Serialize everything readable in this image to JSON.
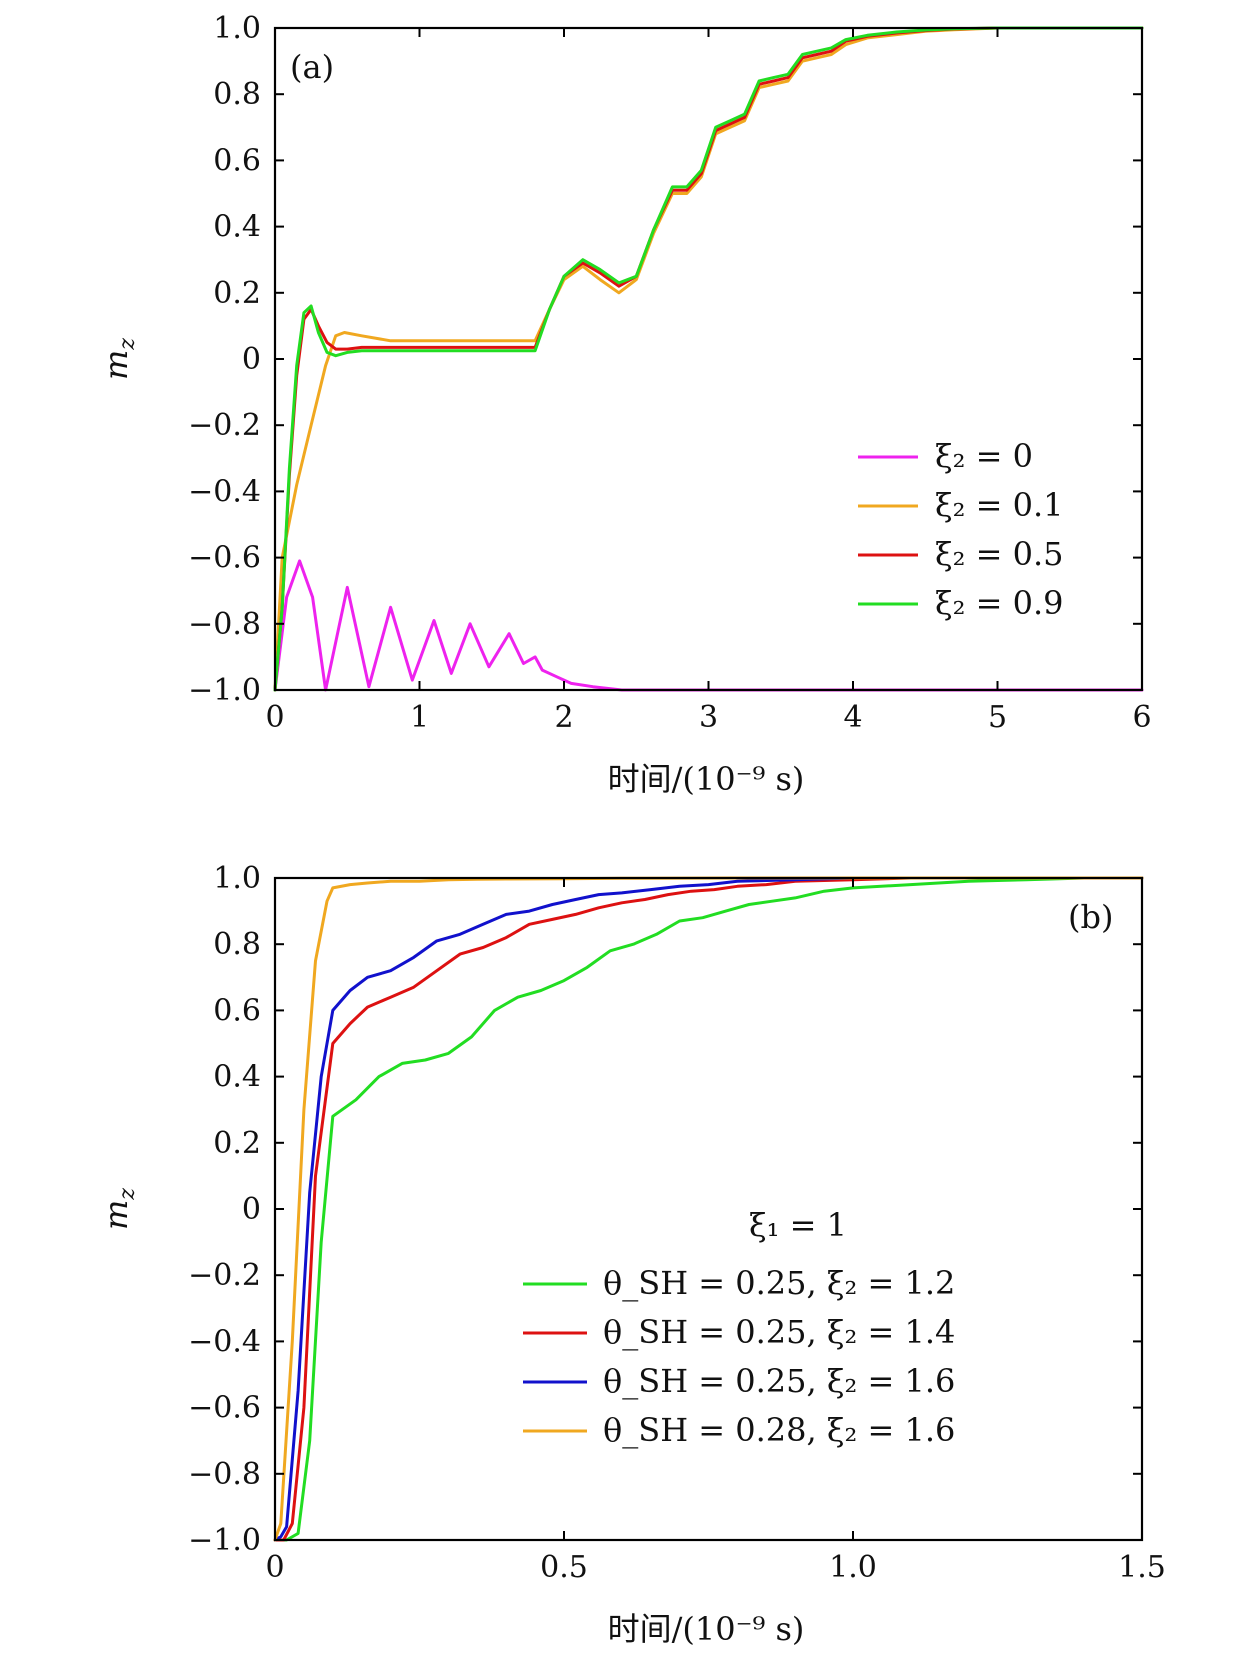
{
  "chart_data": [
    {
      "type": "line",
      "panel_label": "(a)",
      "xlabel": "时间/(10⁻⁹ s)",
      "ylabel": "m_z",
      "xlim": [
        0,
        6
      ],
      "ylim": [
        -1.0,
        1.0
      ],
      "x_ticks": [
        0,
        1,
        2,
        3,
        4,
        5,
        6
      ],
      "x_tick_labels": [
        "0",
        "1",
        "2",
        "3",
        "4",
        "5",
        "6"
      ],
      "y_ticks": [
        -1.0,
        -0.8,
        -0.6,
        -0.4,
        -0.2,
        0,
        0.2,
        0.4,
        0.6,
        0.8,
        1.0
      ],
      "y_tick_labels": [
        "−1.0",
        "−0.8",
        "−0.6",
        "−0.4",
        "−0.2",
        "0",
        "0.2",
        "0.4",
        "0.6",
        "0.8",
        "1.0"
      ],
      "grid": false,
      "legend_position": "right-center",
      "series": [
        {
          "name": "ξ₂ = 0",
          "color": "#ee22ee",
          "x": [
            0,
            0.08,
            0.17,
            0.26,
            0.35,
            0.5,
            0.65,
            0.8,
            0.95,
            1.1,
            1.22,
            1.35,
            1.48,
            1.62,
            1.72,
            1.8,
            1.85,
            1.95,
            2.05,
            2.2,
            2.4,
            2.6,
            3.0,
            4.0,
            5.0,
            6.0
          ],
          "y": [
            -1.0,
            -0.72,
            -0.61,
            -0.72,
            -1.0,
            -0.69,
            -0.99,
            -0.75,
            -0.97,
            -0.79,
            -0.95,
            -0.8,
            -0.93,
            -0.83,
            -0.92,
            -0.9,
            -0.94,
            -0.96,
            -0.98,
            -0.99,
            -1.0,
            -1.0,
            -1.0,
            -1.0,
            -1.0,
            -1.0
          ]
        },
        {
          "name": "ξ₂ = 0.1",
          "color": "#f0a820",
          "x": [
            0,
            0.05,
            0.15,
            0.25,
            0.35,
            0.42,
            0.48,
            0.6,
            0.8,
            1.0,
            1.4,
            1.8,
            1.9,
            2.0,
            2.13,
            2.25,
            2.38,
            2.5,
            2.62,
            2.75,
            2.85,
            2.95,
            3.05,
            3.15,
            3.25,
            3.35,
            3.45,
            3.55,
            3.65,
            3.75,
            3.85,
            3.95,
            4.1,
            4.3,
            4.5,
            4.7,
            5.0,
            6.0
          ],
          "y": [
            -1.0,
            -0.6,
            -0.38,
            -0.2,
            -0.02,
            0.07,
            0.08,
            0.07,
            0.055,
            0.055,
            0.055,
            0.055,
            0.15,
            0.24,
            0.28,
            0.24,
            0.2,
            0.24,
            0.38,
            0.5,
            0.5,
            0.55,
            0.68,
            0.7,
            0.72,
            0.82,
            0.83,
            0.84,
            0.9,
            0.91,
            0.92,
            0.95,
            0.97,
            0.98,
            0.99,
            0.995,
            1.0,
            1.0
          ]
        },
        {
          "name": "ξ₂ = 0.5",
          "color": "#dd1111",
          "x": [
            0,
            0.05,
            0.1,
            0.15,
            0.2,
            0.25,
            0.3,
            0.36,
            0.42,
            0.5,
            0.6,
            0.8,
            1.0,
            1.4,
            1.8,
            1.9,
            2.0,
            2.13,
            2.25,
            2.38,
            2.5,
            2.62,
            2.75,
            2.85,
            2.95,
            3.05,
            3.15,
            3.25,
            3.35,
            3.45,
            3.55,
            3.65,
            3.75,
            3.85,
            3.95,
            4.1,
            4.3,
            4.5,
            4.7,
            5.0,
            6.0
          ],
          "y": [
            -1.0,
            -0.75,
            -0.35,
            -0.05,
            0.12,
            0.15,
            0.1,
            0.05,
            0.03,
            0.03,
            0.035,
            0.035,
            0.035,
            0.035,
            0.035,
            0.15,
            0.25,
            0.29,
            0.26,
            0.22,
            0.25,
            0.39,
            0.51,
            0.51,
            0.56,
            0.69,
            0.71,
            0.73,
            0.83,
            0.84,
            0.85,
            0.91,
            0.92,
            0.93,
            0.96,
            0.975,
            0.985,
            0.992,
            0.997,
            1.0,
            1.0
          ]
        },
        {
          "name": "ξ₂ = 0.9",
          "color": "#22dd22",
          "x": [
            0,
            0.05,
            0.1,
            0.15,
            0.2,
            0.25,
            0.3,
            0.36,
            0.42,
            0.5,
            0.6,
            0.8,
            1.0,
            1.4,
            1.8,
            1.9,
            2.0,
            2.13,
            2.25,
            2.38,
            2.5,
            2.62,
            2.75,
            2.85,
            2.95,
            3.05,
            3.15,
            3.25,
            3.35,
            3.45,
            3.55,
            3.65,
            3.75,
            3.85,
            3.95,
            4.1,
            4.3,
            4.5,
            4.7,
            5.0,
            6.0
          ],
          "y": [
            -1.0,
            -0.75,
            -0.33,
            -0.02,
            0.14,
            0.16,
            0.08,
            0.02,
            0.01,
            0.02,
            0.025,
            0.025,
            0.025,
            0.025,
            0.025,
            0.15,
            0.25,
            0.3,
            0.27,
            0.23,
            0.25,
            0.39,
            0.52,
            0.52,
            0.57,
            0.7,
            0.72,
            0.74,
            0.84,
            0.85,
            0.86,
            0.92,
            0.93,
            0.94,
            0.965,
            0.978,
            0.988,
            0.994,
            0.998,
            1.0,
            1.0
          ]
        }
      ]
    },
    {
      "type": "line",
      "panel_label": "(b)",
      "xlabel": "时间/(10⁻⁹ s)",
      "ylabel": "m_z",
      "xlim": [
        0,
        1.5
      ],
      "ylim": [
        -1.0,
        1.0
      ],
      "x_ticks": [
        0,
        0.5,
        1.0,
        1.5
      ],
      "x_tick_labels": [
        "0",
        "0.5",
        "1.0",
        "1.5"
      ],
      "y_ticks": [
        -1.0,
        -0.8,
        -0.6,
        -0.4,
        -0.2,
        0,
        0.2,
        0.4,
        0.6,
        0.8,
        1.0
      ],
      "y_tick_labels": [
        "−1.0",
        "−0.8",
        "−0.6",
        "−0.4",
        "−0.2",
        "0",
        "0.2",
        "0.4",
        "0.6",
        "0.8",
        "1.0"
      ],
      "grid": false,
      "legend_position": "lower-right",
      "legend_title": "ξ₁ = 1",
      "series": [
        {
          "name": "θ_SH = 0.25, ξ₂ = 1.2",
          "color": "#22dd22",
          "x": [
            0,
            0.02,
            0.04,
            0.06,
            0.08,
            0.1,
            0.14,
            0.18,
            0.22,
            0.26,
            0.3,
            0.34,
            0.38,
            0.42,
            0.46,
            0.5,
            0.54,
            0.58,
            0.62,
            0.66,
            0.7,
            0.74,
            0.78,
            0.82,
            0.86,
            0.9,
            0.95,
            1.0,
            1.1,
            1.2,
            1.3,
            1.4,
            1.5
          ],
          "y": [
            -1.0,
            -1.0,
            -0.98,
            -0.7,
            -0.1,
            0.28,
            0.33,
            0.4,
            0.44,
            0.45,
            0.47,
            0.52,
            0.6,
            0.64,
            0.66,
            0.69,
            0.73,
            0.78,
            0.8,
            0.83,
            0.87,
            0.88,
            0.9,
            0.92,
            0.93,
            0.94,
            0.96,
            0.97,
            0.98,
            0.99,
            0.995,
            1.0,
            1.0
          ]
        },
        {
          "name": "θ_SH = 0.25, ξ₂ = 1.4",
          "color": "#dd1111",
          "x": [
            0,
            0.015,
            0.03,
            0.05,
            0.07,
            0.1,
            0.13,
            0.16,
            0.2,
            0.24,
            0.28,
            0.32,
            0.36,
            0.4,
            0.44,
            0.48,
            0.52,
            0.56,
            0.6,
            0.64,
            0.68,
            0.72,
            0.76,
            0.8,
            0.85,
            0.9,
            1.0,
            1.1,
            1.5
          ],
          "y": [
            -1.0,
            -1.0,
            -0.95,
            -0.6,
            0.1,
            0.5,
            0.56,
            0.61,
            0.64,
            0.67,
            0.72,
            0.77,
            0.79,
            0.82,
            0.86,
            0.875,
            0.89,
            0.91,
            0.925,
            0.935,
            0.95,
            0.96,
            0.965,
            0.975,
            0.98,
            0.99,
            0.995,
            1.0,
            1.0
          ]
        },
        {
          "name": "θ_SH = 0.25, ξ₂ = 1.6",
          "color": "#1111cc",
          "x": [
            0,
            0.01,
            0.02,
            0.04,
            0.06,
            0.08,
            0.1,
            0.13,
            0.16,
            0.2,
            0.24,
            0.28,
            0.32,
            0.36,
            0.4,
            0.44,
            0.48,
            0.52,
            0.56,
            0.6,
            0.65,
            0.7,
            0.75,
            0.8,
            0.9,
            1.0,
            1.5
          ],
          "y": [
            -1.0,
            -0.99,
            -0.96,
            -0.55,
            0.05,
            0.4,
            0.6,
            0.66,
            0.7,
            0.72,
            0.76,
            0.81,
            0.83,
            0.86,
            0.89,
            0.9,
            0.92,
            0.935,
            0.95,
            0.955,
            0.965,
            0.975,
            0.98,
            0.99,
            0.995,
            1.0,
            1.0
          ]
        },
        {
          "name": "θ_SH = 0.28, ξ₂ = 1.6",
          "color": "#f0a820",
          "x": [
            0,
            0.01,
            0.03,
            0.05,
            0.07,
            0.09,
            0.1,
            0.13,
            0.16,
            0.2,
            0.25,
            0.3,
            0.35,
            0.4,
            0.5,
            0.6,
            0.8,
            1.0,
            1.5
          ],
          "y": [
            -1.0,
            -0.95,
            -0.4,
            0.3,
            0.75,
            0.93,
            0.97,
            0.98,
            0.985,
            0.99,
            0.99,
            0.995,
            0.996,
            0.997,
            0.998,
            0.999,
            1.0,
            1.0,
            1.0
          ]
        }
      ]
    }
  ]
}
